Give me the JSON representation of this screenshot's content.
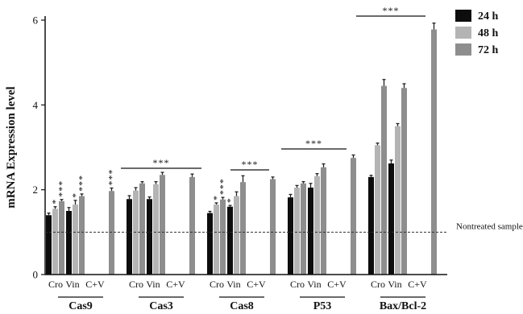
{
  "chart_data": {
    "type": "bar",
    "ylabel": "mRNA Expression level",
    "ylim": [
      0,
      6
    ],
    "yticks": [
      0,
      2,
      4,
      6
    ],
    "legend_position": "top-right",
    "series": [
      {
        "name": "24 h",
        "color": "#0d0d0d"
      },
      {
        "name": "48 h",
        "color": "#b4b4b4"
      },
      {
        "name": "72 h",
        "color": "#8e8e8e"
      }
    ],
    "condition_labels": [
      "Cro",
      "Vin",
      "C+V"
    ],
    "groups": [
      {
        "name": "Cas9",
        "values": [
          [
            1.4,
            1.55,
            1.73
          ],
          [
            1.5,
            1.65,
            1.85
          ],
          [
            null,
            null,
            1.97
          ]
        ],
        "errors": [
          [
            0.05,
            0.05,
            0.04
          ],
          [
            0.08,
            0.1,
            0.05
          ],
          [
            null,
            null,
            0.07
          ]
        ],
        "bar_stars": [
          [
            null,
            "*",
            "***"
          ],
          [
            null,
            "*",
            "***"
          ],
          [
            null,
            null,
            "***"
          ]
        ],
        "bracket": null
      },
      {
        "name": "Cas3",
        "values": [
          [
            1.78,
            1.98,
            2.15
          ],
          [
            1.78,
            2.13,
            2.35
          ],
          [
            null,
            null,
            2.3
          ]
        ],
        "errors": [
          [
            0.08,
            0.07,
            0.04
          ],
          [
            0.05,
            0.06,
            0.06
          ],
          [
            null,
            null,
            0.07
          ]
        ],
        "bar_stars": null,
        "bracket": "***"
      },
      {
        "name": "Cas8",
        "values": [
          [
            1.45,
            1.65,
            1.77
          ],
          [
            1.6,
            1.85,
            2.18
          ],
          [
            null,
            null,
            2.25
          ]
        ],
        "errors": [
          [
            0.04,
            0.04,
            0.05
          ],
          [
            0.03,
            0.1,
            0.15
          ],
          [
            null,
            null,
            0.05
          ]
        ],
        "bar_stars": [
          [
            null,
            "*",
            "***"
          ],
          [
            "*",
            null,
            null
          ],
          [
            null,
            null,
            null
          ]
        ],
        "bracket": "***"
      },
      {
        "name": "P53",
        "values": [
          [
            1.82,
            2.05,
            2.15
          ],
          [
            2.05,
            2.32,
            2.53
          ],
          [
            null,
            null,
            2.75
          ]
        ],
        "errors": [
          [
            0.07,
            0.05,
            0.04
          ],
          [
            0.1,
            0.06,
            0.08
          ],
          [
            null,
            null,
            0.07
          ]
        ],
        "bar_stars": null,
        "bracket": "***"
      },
      {
        "name": "Bax/Bcl-2",
        "values": [
          [
            2.3,
            3.05,
            4.45
          ],
          [
            2.62,
            3.5,
            4.4
          ],
          [
            null,
            null,
            5.78
          ]
        ],
        "errors": [
          [
            0.04,
            0.05,
            0.15
          ],
          [
            0.08,
            0.06,
            0.1
          ],
          [
            null,
            null,
            0.15
          ]
        ],
        "bar_stars": null,
        "bracket": "***"
      }
    ],
    "reference_line": {
      "value": 1.0,
      "label": "Nontreated sample"
    }
  }
}
